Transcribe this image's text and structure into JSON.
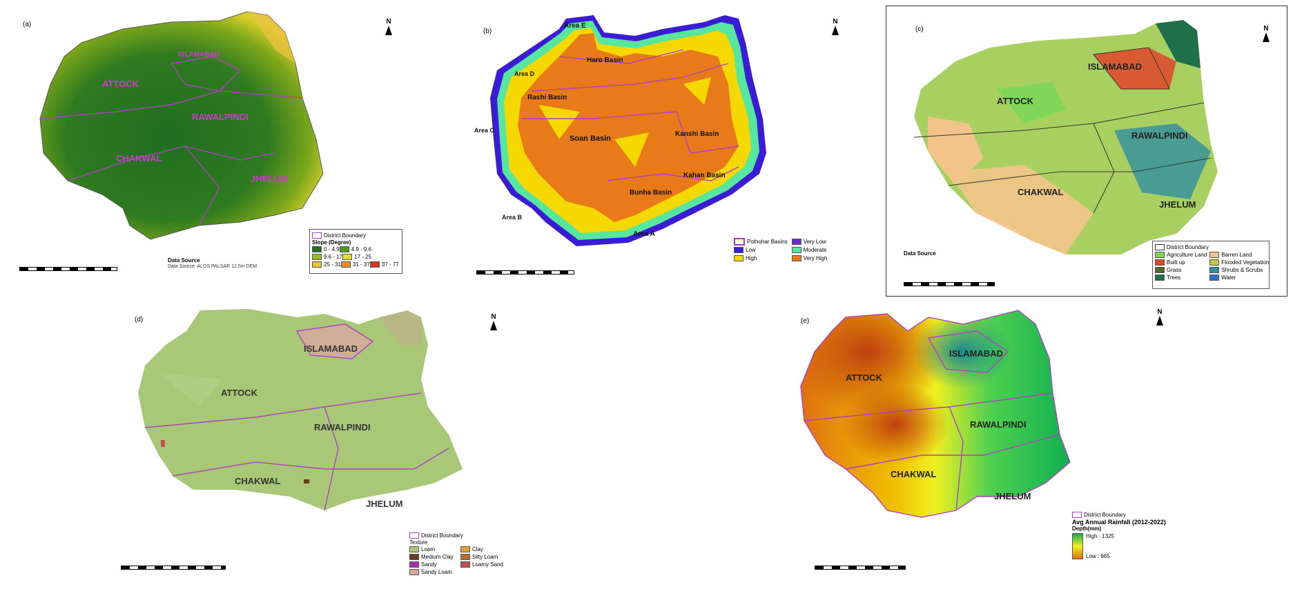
{
  "panels": {
    "a": {
      "letter": "(a)",
      "districts": [
        "ISLAMABAD",
        "ATTOCK",
        "RAWALPINDI",
        "CHAKWAL",
        "JHELUM"
      ],
      "legend_title": "Slope (Degree)",
      "legend_boundary": "District Boundary",
      "legend_items": [
        {
          "label": "0 - 4.9",
          "color": "#1f6f1f"
        },
        {
          "label": "4.9 - 9.6",
          "color": "#4f9a1f"
        },
        {
          "label": "9.6 - 17",
          "color": "#9cbf1e"
        },
        {
          "label": "17 - 25",
          "color": "#e0e02a"
        },
        {
          "label": "25 - 31",
          "color": "#f1c232"
        },
        {
          "label": "31 - 37",
          "color": "#f08a24"
        },
        {
          "label": "37 - 77",
          "color": "#d9341c"
        }
      ],
      "source_title": "Data Source",
      "source_text": "Data Source: ALOS PALSAR 12.5m DEM",
      "north": "N"
    },
    "b": {
      "letter": "(b)",
      "basins": [
        "Area E",
        "Haro Basin",
        "Area D",
        "Rashi Basin",
        "Area C",
        "Soan Basin",
        "Kanshi Basin",
        "Kahan Basin",
        "Bunha Basin",
        "Area B",
        "Area A"
      ],
      "legend_items": [
        {
          "label": "Pothohar Basins",
          "color": "#ffffff",
          "outline": "#a03ac8"
        },
        {
          "label": "Very Low",
          "color": "#6b2ad6"
        },
        {
          "label": "Low",
          "color": "#3b1cd4"
        },
        {
          "label": "Moderate",
          "color": "#56e6a0"
        },
        {
          "label": "High",
          "color": "#f4d800"
        },
        {
          "label": "Very High",
          "color": "#e87a1a"
        }
      ],
      "north": "N"
    },
    "c": {
      "letter": "(c)",
      "districts": [
        "ISLAMABAD",
        "ATTOCK",
        "RAWALPINDI",
        "CHAKWAL",
        "JHELUM"
      ],
      "legend_boundary": "District Boundary",
      "legend_items": [
        {
          "label": "Agriculture Land",
          "color": "#7fd65a"
        },
        {
          "label": "Barren Land",
          "color": "#f2c48a"
        },
        {
          "label": "Built up",
          "color": "#e0452a"
        },
        {
          "label": "Flooded Vegetation",
          "color": "#c8c83c"
        },
        {
          "label": "Grass",
          "color": "#4b6b2a"
        },
        {
          "label": "Shrubs & Scrubs",
          "color": "#2f8fa0"
        },
        {
          "label": "Trees",
          "color": "#1f6f4a"
        },
        {
          "label": "Water",
          "color": "#2a6fd6"
        }
      ],
      "source_title": "Data Source",
      "north": "N"
    },
    "d": {
      "letter": "(d)",
      "districts": [
        "ISLAMABAD",
        "ATTOCK",
        "RAWALPINDI",
        "CHAKWAL",
        "JHELUM"
      ],
      "legend_boundary": "District Boundary",
      "legend_texture": "Texture",
      "legend_items": [
        {
          "label": "Loam",
          "color": "#a8c878"
        },
        {
          "label": "Clay",
          "color": "#e8a030"
        },
        {
          "label": "Medium Clay",
          "color": "#6a3a1a"
        },
        {
          "label": "Silty Loam",
          "color": "#b87030"
        },
        {
          "label": "Sandy",
          "color": "#b030b0"
        },
        {
          "label": "Loamy Sand",
          "color": "#c05050"
        },
        {
          "label": "Sandy Loam",
          "color": "#d8a8a0"
        }
      ],
      "north": "N"
    },
    "e": {
      "letter": "(e)",
      "districts": [
        "ISLAMABAD",
        "ATTOCK",
        "RAWALPINDI",
        "CHAKWAL",
        "JHELUM"
      ],
      "legend_boundary": "District Boundary",
      "legend_title": "Avg Annual Rainfall (2012-2022)",
      "legend_unit": "Depth(mm)",
      "legend_high": "High : 1325",
      "legend_low": "Low : 665",
      "north": "N"
    }
  },
  "colors": {
    "district_border": "#b040c0",
    "text_district": "#d03ad0"
  }
}
